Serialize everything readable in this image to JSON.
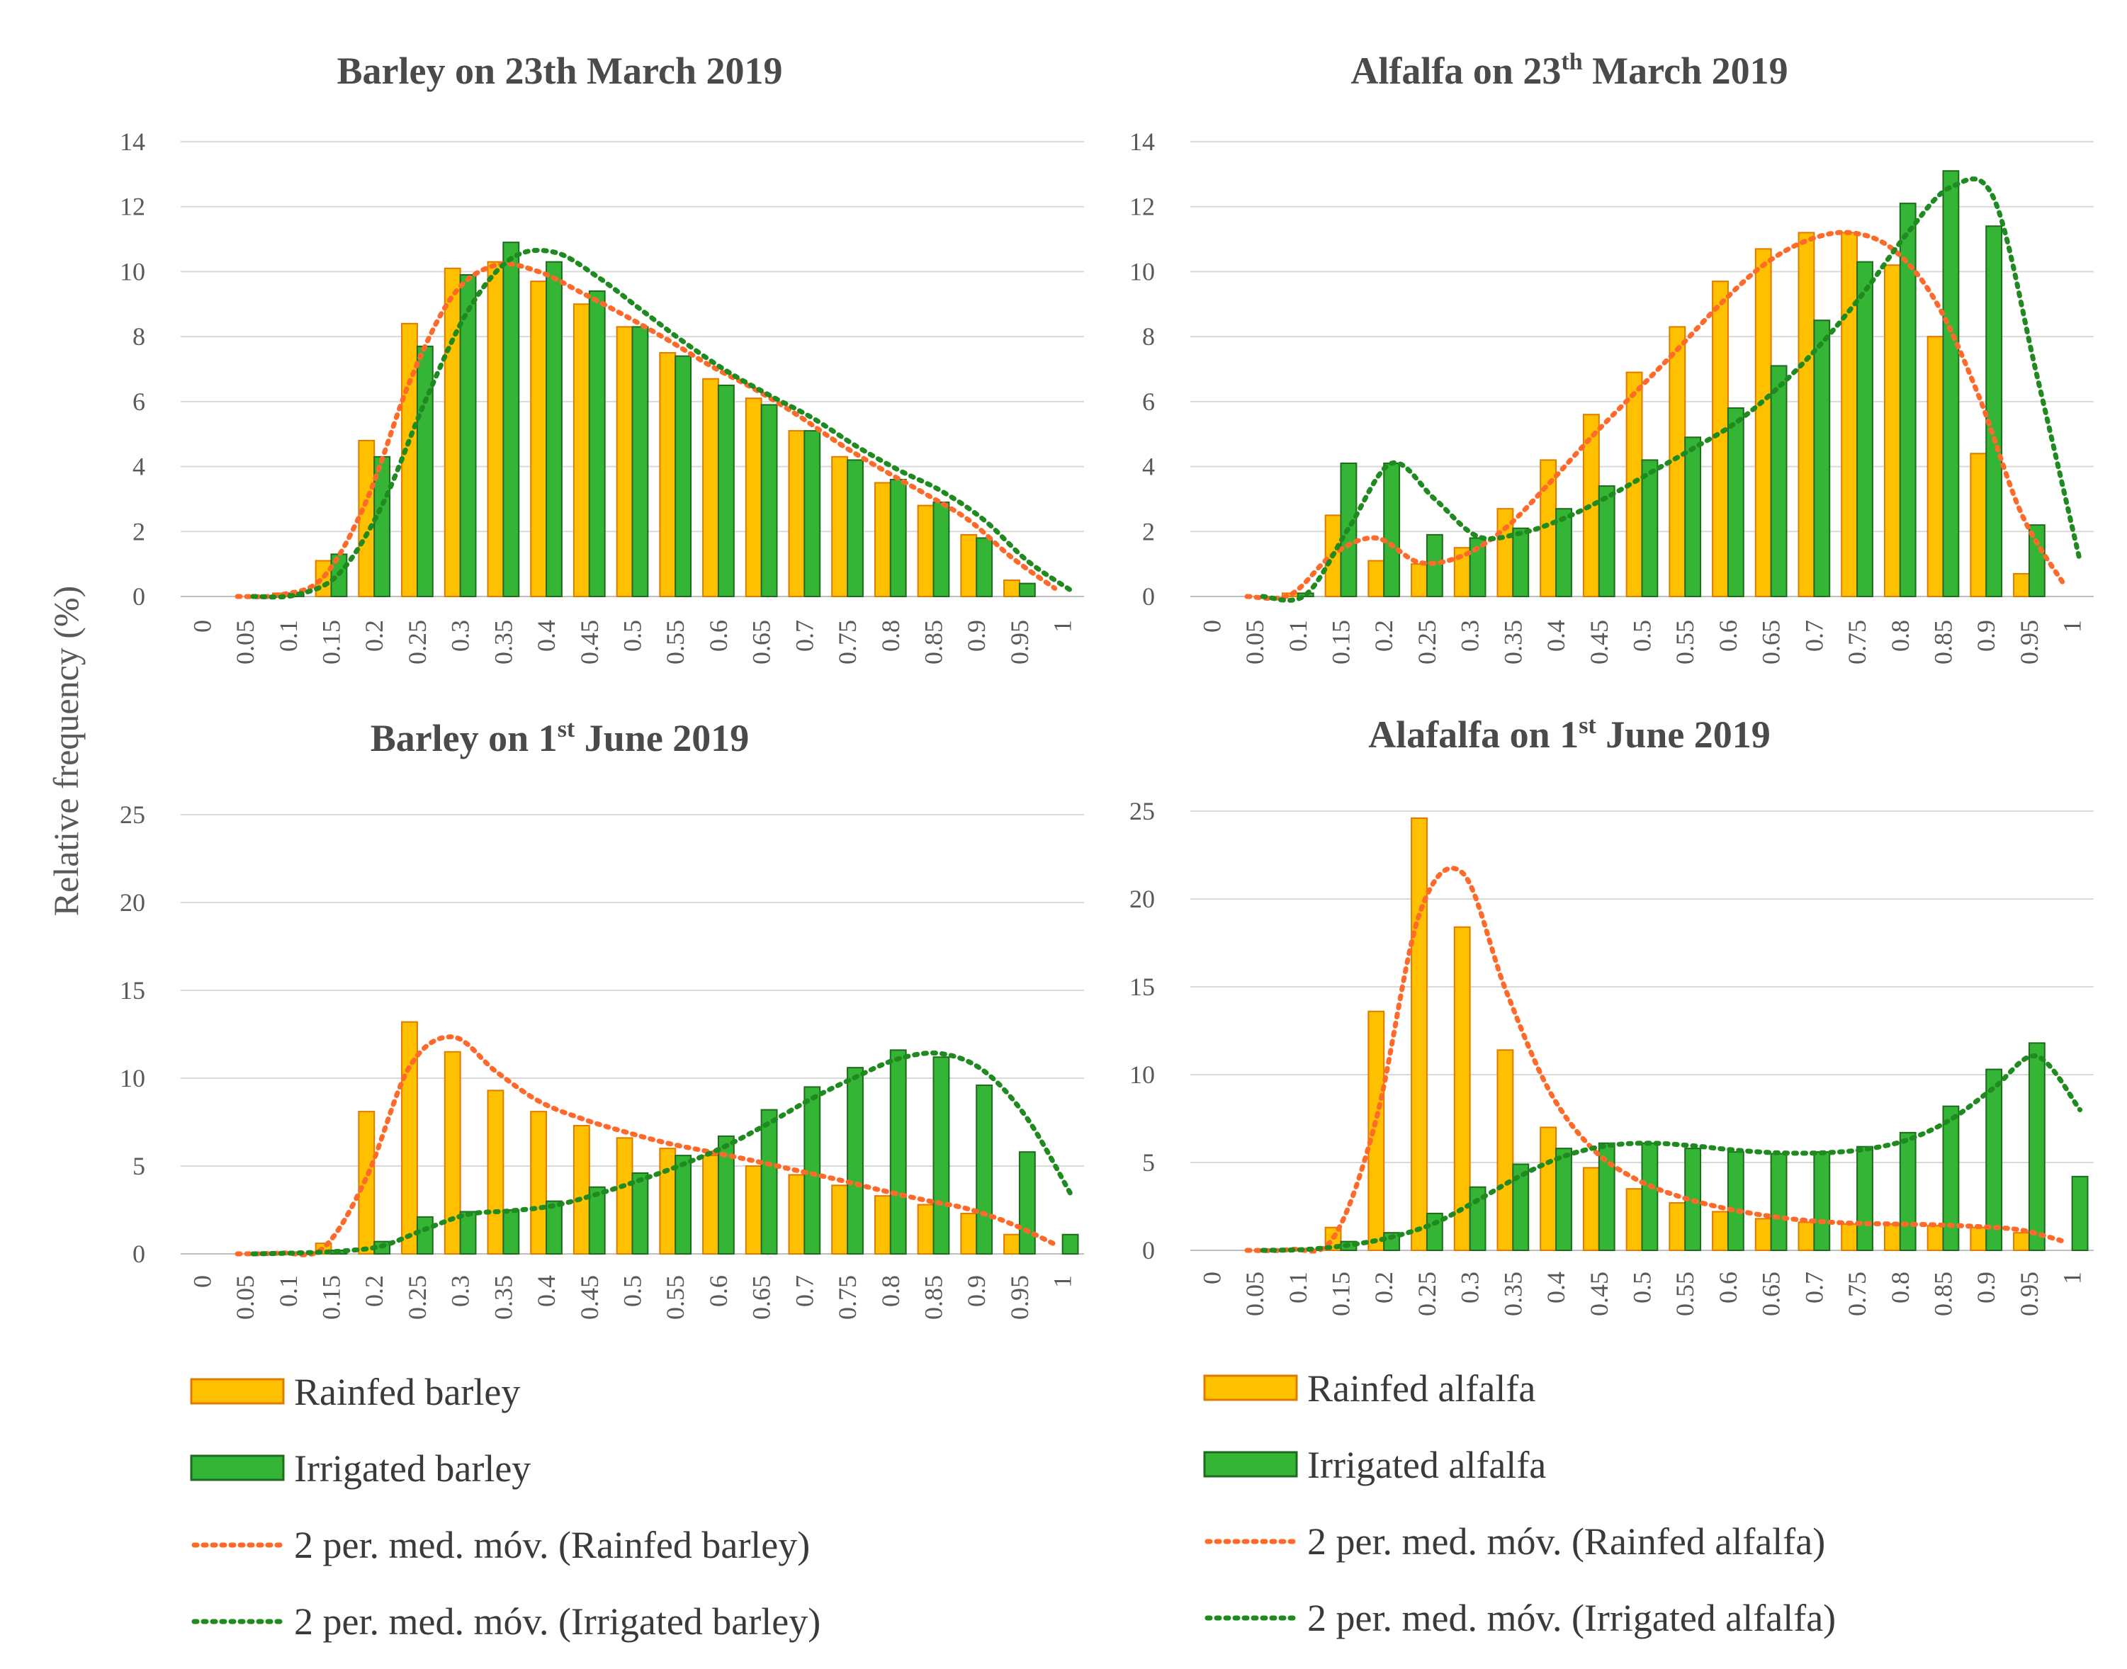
{
  "colors": {
    "rainfed_fill": "#ffc000",
    "rainfed_stroke": "#e07b00",
    "irrigated_fill": "#35b535",
    "irrigated_stroke": "#1e6b1e",
    "rainfed_trend": "#ff6a2a",
    "irrigated_trend": "#1f8a1f",
    "grid": "#d9d9d9",
    "text": "#595959"
  },
  "ylabel": "Relative frequency  (%)",
  "legends": [
    {
      "rainfed": "Rainfed barley",
      "irrigated": "Irrigated barley",
      "rainfed_trend": "2 per. med. móv. (Rainfed barley)",
      "irrigated_trend": "2 per. med. móv. (Irrigated barley)"
    },
    {
      "rainfed": "Rainfed alfalfa",
      "irrigated": "Irrigated alfalfa",
      "rainfed_trend": "2 per. med. móv. (Rainfed alfalfa)",
      "irrigated_trend": "2 per. med. móv. (Irrigated alfalfa)"
    }
  ],
  "chart_data": [
    {
      "type": "bar",
      "title": {
        "main": "Barley on 23th March 2019",
        "sup": "",
        "rest": ""
      },
      "categories": [
        "0",
        "0.05",
        "0.1",
        "0.15",
        "0.2",
        "0.25",
        "0.3",
        "0.35",
        "0.4",
        "0.45",
        "0.5",
        "0.55",
        "0.6",
        "0.65",
        "0.7",
        "0.75",
        "0.8",
        "0.85",
        "0.9",
        "0.95",
        "1"
      ],
      "ylim": [
        0,
        14
      ],
      "yticks": [
        0,
        2,
        4,
        6,
        8,
        10,
        12,
        14
      ],
      "series": [
        {
          "name": "Rainfed barley",
          "values": [
            0,
            0,
            0.1,
            1.1,
            4.8,
            8.4,
            10.1,
            10.3,
            9.7,
            9.0,
            8.3,
            7.5,
            6.7,
            6.1,
            5.1,
            4.3,
            3.5,
            2.8,
            1.9,
            0.5,
            0
          ]
        },
        {
          "name": "Irrigated barley",
          "values": [
            0,
            0,
            0.1,
            1.3,
            4.3,
            7.7,
            9.9,
            10.9,
            10.3,
            9.4,
            8.3,
            7.4,
            6.5,
            5.9,
            5.1,
            4.2,
            3.6,
            2.9,
            1.8,
            0.4,
            0
          ]
        }
      ]
    },
    {
      "type": "bar",
      "title": {
        "main": "Alfalfa on 23",
        "sup": "th",
        "rest": " March 2019"
      },
      "categories": [
        "0",
        "0.05",
        "0.1",
        "0.15",
        "0.2",
        "0.25",
        "0.3",
        "0.35",
        "0.4",
        "0.45",
        "0.5",
        "0.55",
        "0.6",
        "0.65",
        "0.7",
        "0.75",
        "0.8",
        "0.85",
        "0.9",
        "0.95",
        "1"
      ],
      "ylim": [
        0,
        14
      ],
      "yticks": [
        0,
        2,
        4,
        6,
        8,
        10,
        12,
        14
      ],
      "series": [
        {
          "name": "Rainfed alfalfa",
          "values": [
            0,
            0,
            0.1,
            2.5,
            1.1,
            1.0,
            1.5,
            2.7,
            4.2,
            5.6,
            6.9,
            8.3,
            9.7,
            10.7,
            11.2,
            11.2,
            10.2,
            8.0,
            4.4,
            0.7,
            0
          ]
        },
        {
          "name": "Irrigated alfalfa",
          "values": [
            0,
            0,
            0.1,
            4.1,
            4.1,
            1.9,
            1.8,
            2.1,
            2.7,
            3.4,
            4.2,
            4.9,
            5.8,
            7.1,
            8.5,
            10.3,
            12.1,
            13.1,
            11.4,
            2.2,
            0
          ]
        }
      ]
    },
    {
      "type": "bar",
      "title": {
        "main": "Barley on 1",
        "sup": "st",
        "rest": " June 2019"
      },
      "categories": [
        "0",
        "0.05",
        "0.1",
        "0.15",
        "0.2",
        "0.25",
        "0.3",
        "0.35",
        "0.4",
        "0.45",
        "0.5",
        "0.55",
        "0.6",
        "0.65",
        "0.7",
        "0.75",
        "0.8",
        "0.85",
        "0.9",
        "0.95",
        "1"
      ],
      "ylim": [
        0,
        25
      ],
      "yticks": [
        0,
        5,
        10,
        15,
        20,
        25
      ],
      "series": [
        {
          "name": "Rainfed barley",
          "values": [
            0,
            0,
            0.1,
            0.6,
            8.1,
            13.2,
            11.5,
            9.3,
            8.1,
            7.3,
            6.6,
            6.0,
            5.6,
            5.0,
            4.5,
            3.9,
            3.3,
            2.8,
            2.3,
            1.1,
            0
          ]
        },
        {
          "name": "Irrigated barley",
          "values": [
            0,
            0,
            0.1,
            0.2,
            0.7,
            2.1,
            2.4,
            2.5,
            3.0,
            3.8,
            4.6,
            5.6,
            6.7,
            8.2,
            9.5,
            10.6,
            11.6,
            11.2,
            9.6,
            5.8,
            1.1
          ]
        }
      ]
    },
    {
      "type": "bar",
      "title": {
        "main": "Alafalfa on 1",
        "sup": "st",
        "rest": " June 2019"
      },
      "categories": [
        "0",
        "0.05",
        "0.1",
        "0.15",
        "0.2",
        "0.25",
        "0.3",
        "0.35",
        "0.4",
        "0.45",
        "0.5",
        "0.55",
        "0.6",
        "0.65",
        "0.7",
        "0.75",
        "0.8",
        "0.85",
        "0.9",
        "0.95",
        "1"
      ],
      "ylim": [
        0,
        25
      ],
      "yticks": [
        0,
        5,
        10,
        15,
        20,
        25
      ],
      "series": [
        {
          "name": "Rainfed alfalfa",
          "values": [
            0,
            0,
            0.1,
            1.3,
            13.6,
            24.6,
            18.4,
            11.4,
            7.0,
            4.7,
            3.5,
            2.7,
            2.2,
            1.8,
            1.6,
            1.5,
            1.5,
            1.4,
            1.3,
            1.0,
            0
          ]
        },
        {
          "name": "Irrigated alfalfa",
          "values": [
            0,
            0,
            0.1,
            0.5,
            1.0,
            2.1,
            3.6,
            4.9,
            5.8,
            6.1,
            6.1,
            5.8,
            5.6,
            5.5,
            5.6,
            5.9,
            6.7,
            8.2,
            10.3,
            11.8,
            4.2
          ]
        }
      ]
    }
  ]
}
